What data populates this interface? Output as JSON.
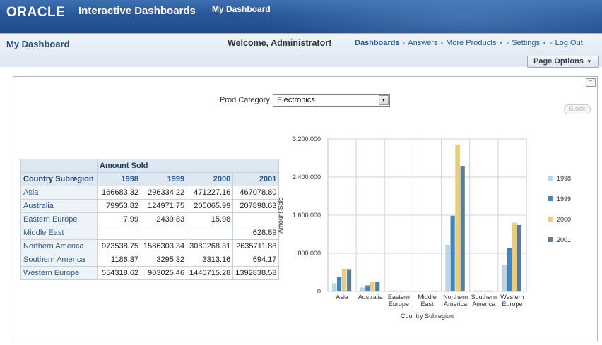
{
  "banner": {
    "logo": "ORACLE",
    "app_title": "Interactive Dashboards",
    "active_tab": "My Dashboard"
  },
  "header": {
    "page_title": "My Dashboard",
    "welcome": "Welcome, Administrator!",
    "nav": {
      "dashboards": "Dashboards",
      "answers": "Answers",
      "more_products": "More Products",
      "settings": "Settings",
      "logout": "Log Out"
    },
    "page_options": "Page Options"
  },
  "block_button": "Block",
  "prompt": {
    "label": "Prod Category",
    "value": "Electronics"
  },
  "table": {
    "measure_header": "Amount Sold",
    "row_header": "Country Subregion",
    "years": [
      "1998",
      "1999",
      "2000",
      "2001"
    ],
    "rows": [
      {
        "label": "Asia",
        "values": [
          "166683.32",
          "296334.22",
          "471227.16",
          "467078.80"
        ]
      },
      {
        "label": "Australia",
        "values": [
          "79953.82",
          "124971.75",
          "205065.99",
          "207898.63"
        ]
      },
      {
        "label": "Eastern Europe",
        "values": [
          "7.99",
          "2439.83",
          "15.98",
          ""
        ]
      },
      {
        "label": "Middle East",
        "values": [
          "",
          "",
          "",
          "628.89"
        ]
      },
      {
        "label": "Northern America",
        "values": [
          "973538.75",
          "1586303.34",
          "3080268.31",
          "2635711.88"
        ]
      },
      {
        "label": "Southern America",
        "values": [
          "1186.37",
          "3295.32",
          "3313.16",
          "694.17"
        ]
      },
      {
        "label": "Western Europe",
        "values": [
          "554318.62",
          "903025.46",
          "1440715.28",
          "1392838.58"
        ]
      }
    ]
  },
  "chart_data": {
    "type": "bar",
    "xlabel": "Country Subregion",
    "ylabel": "Amount Sold",
    "ylim": [
      0,
      3200000
    ],
    "yticks": [
      "0",
      "800,000",
      "1,600,000",
      "2,400,000",
      "3,200,000"
    ],
    "ytick_values": [
      0,
      800000,
      1600000,
      2400000,
      3200000
    ],
    "categories": [
      [
        "Asia"
      ],
      [
        "Australia"
      ],
      [
        "Eastern",
        "Europe"
      ],
      [
        "Middle",
        "East"
      ],
      [
        "Northern",
        "America"
      ],
      [
        "Southern",
        "America"
      ],
      [
        "Western",
        "Europe"
      ]
    ],
    "series": [
      {
        "name": "1998",
        "color": "#b9d7ec",
        "values": [
          166683.32,
          79953.82,
          7.99,
          0,
          973538.75,
          1186.37,
          554318.62
        ]
      },
      {
        "name": "1999",
        "color": "#3f86c4",
        "values": [
          296334.22,
          124971.75,
          2439.83,
          0,
          1586303.34,
          3295.32,
          903025.46
        ]
      },
      {
        "name": "2000",
        "color": "#e9cf7a",
        "values": [
          471227.16,
          205065.99,
          15.98,
          0,
          3080268.31,
          3313.16,
          1440715.28
        ]
      },
      {
        "name": "2001",
        "color": "#5a7c95",
        "values": [
          467078.8,
          207898.63,
          0,
          628.89,
          2635711.88,
          694.17,
          1392838.58
        ]
      }
    ],
    "legend_position": "right",
    "grid": true
  }
}
